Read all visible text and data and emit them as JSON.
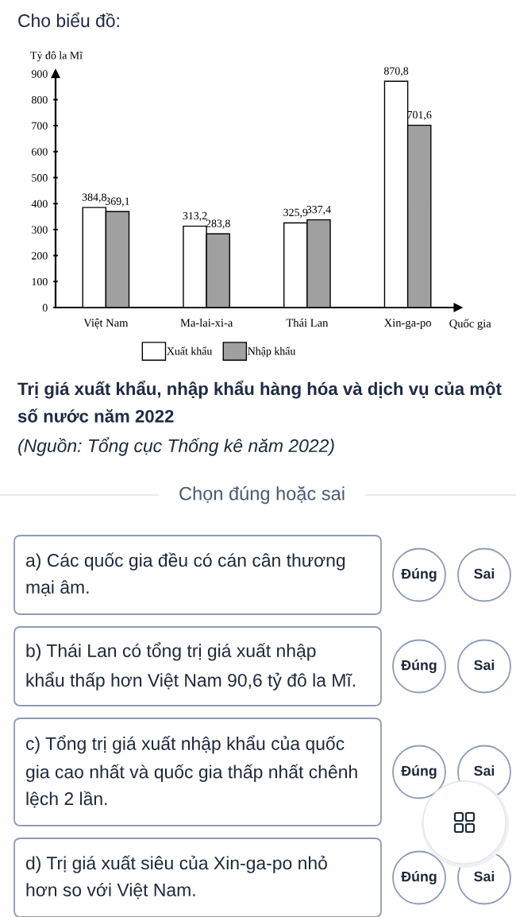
{
  "chart_data": {
    "type": "bar",
    "title": "Trị giá xuất khẩu, nhập khẩu hàng hóa và dịch vụ của một số nước năm 2022",
    "xlabel": "Quốc gia",
    "ylabel": "Tỷ đô la Mĩ",
    "categories": [
      "Việt Nam",
      "Ma-lai-xi-a",
      "Thái Lan",
      "Xin-ga-po"
    ],
    "series": [
      {
        "name": "Xuất khẩu",
        "color": "#ffffff",
        "values": [
          384.8,
          313.2,
          325.9,
          870.8
        ],
        "value_labels": [
          "384,8",
          "313,2",
          "325,9",
          "870,8"
        ]
      },
      {
        "name": "Nhập khẩu",
        "color": "#a0a0a0",
        "values": [
          369.1,
          283.8,
          337.4,
          701.6
        ],
        "value_labels": [
          "369,1",
          "283,8",
          "337,4",
          "701,6"
        ]
      }
    ],
    "ylim": [
      0,
      900
    ],
    "yticks": [
      0,
      100,
      200,
      300,
      400,
      500,
      600,
      700,
      800,
      900
    ],
    "grid": false,
    "legend": "bottom",
    "annotations": [
      "Cho biểu đồ:",
      "(Nguồn: Tổng cục Thống kê năm 2022)",
      "Chọn đúng hoặc sai",
      "a) Các quốc gia đều có cán cân thương\nmại âm.",
      "Đúng",
      "Sai",
      "b) Thái Lan có tổng trị giá xuất nhập\nkhẩu thấp hơn Việt Nam 90,6 tỷ đô la Mĩ.",
      "Đúng",
      "Sai",
      "c) Tổng trị giá xuất nhập khẩu của quốc\ngia cao nhất và quốc gia thấp nhất chênh\nlệch 2 lần.",
      "Đúng",
      "Sai",
      "d) Trị giá xuất siêu của Xin-ga-po nhỏ\nhơn so với Việt Nam.",
      "Đúng",
      "Sai"
    ]
  }
}
